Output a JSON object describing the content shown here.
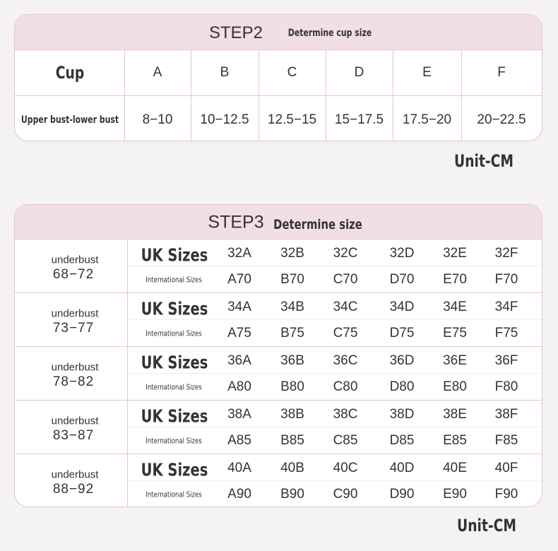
{
  "step2": {
    "title": "STEP2",
    "subtitle": "Determine cup size",
    "header": [
      "Cup",
      "A",
      "B",
      "C",
      "D",
      "E",
      "F"
    ],
    "row": [
      "Upper bust-lower bust",
      "8−10",
      "10−12.5",
      "12.5−15",
      "15−17.5",
      "17.5−20",
      "20−22.5"
    ],
    "unit": "Unit-CM"
  },
  "step3": {
    "title": "STEP3",
    "subtitle": "Determine size",
    "unit": "Unit-CM",
    "groups": [
      {
        "label": "underbust",
        "range": "68−72",
        "uk_label": "UK Sizes",
        "intl_label": "International Sizes",
        "uk": [
          "32A",
          "32B",
          "32C",
          "32D",
          "32E",
          "32F"
        ],
        "intl": [
          "A70",
          "B70",
          "C70",
          "D70",
          "E70",
          "F70"
        ]
      },
      {
        "label": "underbust",
        "range": "73−77",
        "uk_label": "UK Sizes",
        "intl_label": "International Sizes",
        "uk": [
          "34A",
          "34B",
          "34C",
          "34D",
          "34E",
          "34F"
        ],
        "intl": [
          "A75",
          "B75",
          "C75",
          "D75",
          "E75",
          "F75"
        ]
      },
      {
        "label": "underbust",
        "range": "78−82",
        "uk_label": "UK Sizes",
        "intl_label": "International Sizes",
        "uk": [
          "36A",
          "36B",
          "36C",
          "36D",
          "36E",
          "36F"
        ],
        "intl": [
          "A80",
          "B80",
          "C80",
          "D80",
          "E80",
          "F80"
        ]
      },
      {
        "label": "underbust",
        "range": "83−87",
        "uk_label": "UK Sizes",
        "intl_label": "International Sizes",
        "uk": [
          "38A",
          "38B",
          "38C",
          "38D",
          "38E",
          "38F"
        ],
        "intl": [
          "A85",
          "B85",
          "C85",
          "D85",
          "E85",
          "F85"
        ]
      },
      {
        "label": "underbust",
        "range": "88−92",
        "uk_label": "UK Sizes",
        "intl_label": "International Sizes",
        "uk": [
          "40A",
          "40B",
          "40C",
          "40D",
          "40E",
          "40F"
        ],
        "intl": [
          "A90",
          "B90",
          "C90",
          "D90",
          "E90",
          "F90"
        ]
      }
    ]
  }
}
